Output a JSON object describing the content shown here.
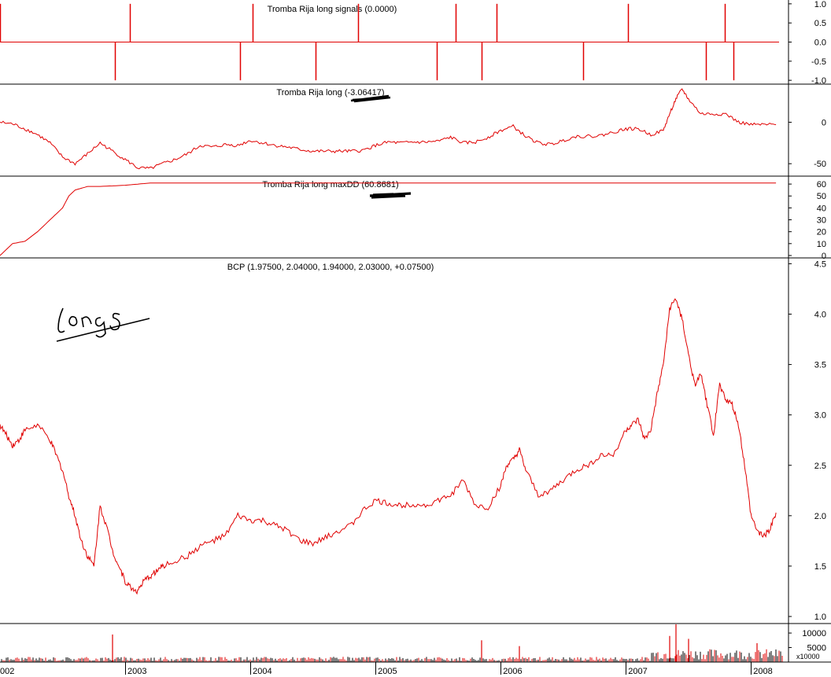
{
  "chart_data": [
    {
      "type": "line",
      "title": "Tromba Rija long signals (0.0000)",
      "ylim": [
        -1.1,
        1.1
      ],
      "yticks": [
        "1.0",
        "0.5",
        "0.0",
        "-0.5",
        "-1.0"
      ],
      "series": [
        {
          "color": "#e00000",
          "signals": [
            {
              "t": 2002.0,
              "v": 1
            },
            {
              "t": 2002.92,
              "v": -1
            },
            {
              "t": 2003.04,
              "v": 1
            },
            {
              "t": 2003.92,
              "v": -1
            },
            {
              "t": 2004.02,
              "v": 1
            },
            {
              "t": 2004.52,
              "v": -1
            },
            {
              "t": 2004.86,
              "v": 1
            },
            {
              "t": 2005.49,
              "v": -1
            },
            {
              "t": 2005.64,
              "v": 1
            },
            {
              "t": 2005.85,
              "v": -1
            },
            {
              "t": 2005.97,
              "v": 1
            },
            {
              "t": 2006.66,
              "v": -1
            },
            {
              "t": 2007.02,
              "v": 1
            },
            {
              "t": 2007.64,
              "v": -1
            },
            {
              "t": 2007.79,
              "v": 1
            },
            {
              "t": 2007.86,
              "v": -1
            }
          ]
        }
      ]
    },
    {
      "type": "line",
      "title": "Tromba Rija long (-3.06417)",
      "ylim": [
        -65,
        45
      ],
      "yticks": [
        "0",
        "-50"
      ],
      "series": [
        {
          "color": "#e00000",
          "x": [
            2002.0,
            2002.1,
            2002.2,
            2002.3,
            2002.4,
            2002.5,
            2002.6,
            2002.7,
            2002.8,
            2002.9,
            2003.0,
            2003.1,
            2003.2,
            2003.3,
            2003.4,
            2003.5,
            2003.6,
            2003.7,
            2003.8,
            2003.9,
            2004.0,
            2004.1,
            2004.2,
            2004.3,
            2004.4,
            2004.5,
            2004.6,
            2004.7,
            2004.8,
            2004.9,
            2005.0,
            2005.1,
            2005.2,
            2005.3,
            2005.4,
            2005.5,
            2005.6,
            2005.7,
            2005.8,
            2005.9,
            2006.0,
            2006.1,
            2006.2,
            2006.3,
            2006.4,
            2006.5,
            2006.6,
            2006.7,
            2006.8,
            2006.9,
            2007.0,
            2007.1,
            2007.2,
            2007.3,
            2007.35,
            2007.4,
            2007.45,
            2007.5,
            2007.6,
            2007.7,
            2007.8,
            2007.9,
            2008.0,
            2008.1,
            2008.2
          ],
          "values": [
            0,
            -2,
            -8,
            -15,
            -25,
            -42,
            -50,
            -38,
            -25,
            -35,
            -45,
            -55,
            -56,
            -50,
            -45,
            -38,
            -28,
            -30,
            -27,
            -28,
            -22,
            -25,
            -28,
            -30,
            -33,
            -35,
            -35,
            -35,
            -35,
            -34,
            -28,
            -24,
            -25,
            -24,
            -24,
            -23,
            -18,
            -25,
            -24,
            -18,
            -10,
            -5,
            -17,
            -25,
            -27,
            -22,
            -17,
            -17,
            -16,
            -12,
            -8,
            -8,
            -15,
            -10,
            10,
            28,
            40,
            28,
            10,
            10,
            10,
            0,
            -3,
            -3,
            -3
          ]
        }
      ]
    },
    {
      "type": "line",
      "title": "Tromba Rija long maxDD (60.8681)",
      "ylim": [
        -2,
        66
      ],
      "yticks": [
        "60",
        "50",
        "40",
        "30",
        "20",
        "10",
        "0"
      ],
      "series": [
        {
          "color": "#e00000",
          "x": [
            2002.0,
            2002.05,
            2002.1,
            2002.2,
            2002.3,
            2002.4,
            2002.5,
            2002.55,
            2002.6,
            2002.7,
            2002.8,
            2003.0,
            2003.2,
            2003.5,
            2005.0,
            2008.2
          ],
          "values": [
            0,
            5,
            10,
            12,
            20,
            30,
            40,
            50,
            55,
            58,
            58,
            59,
            60.8681,
            60.8681,
            60.8681,
            60.8681
          ]
        }
      ]
    },
    {
      "type": "line",
      "title": "BCP (1.97500, 2.04000, 1.94000, 2.03000, +0.07500)",
      "ylim": [
        0.93,
        4.55
      ],
      "yticks": [
        "4.5",
        "4.0",
        "3.5",
        "3.0",
        "2.5",
        "2.0",
        "1.5",
        "1.0"
      ],
      "series": [
        {
          "color": "#e00000",
          "x": [
            2002.0,
            2002.05,
            2002.1,
            2002.15,
            2002.2,
            2002.3,
            2002.4,
            2002.45,
            2002.5,
            2002.55,
            2002.6,
            2002.65,
            2002.7,
            2002.75,
            2002.8,
            2002.85,
            2002.9,
            2002.95,
            2003.0,
            2003.05,
            2003.1,
            2003.15,
            2003.2,
            2003.25,
            2003.3,
            2003.4,
            2003.5,
            2003.6,
            2003.7,
            2003.8,
            2003.9,
            2004.0,
            2004.1,
            2004.2,
            2004.3,
            2004.4,
            2004.5,
            2004.6,
            2004.7,
            2004.8,
            2004.9,
            2005.0,
            2005.1,
            2005.2,
            2005.3,
            2005.4,
            2005.5,
            2005.6,
            2005.7,
            2005.8,
            2005.9,
            2006.0,
            2006.05,
            2006.1,
            2006.15,
            2006.2,
            2006.3,
            2006.4,
            2006.5,
            2006.6,
            2006.7,
            2006.8,
            2006.9,
            2007.0,
            2007.05,
            2007.1,
            2007.15,
            2007.2,
            2007.25,
            2007.3,
            2007.35,
            2007.4,
            2007.45,
            2007.5,
            2007.55,
            2007.6,
            2007.65,
            2007.7,
            2007.75,
            2007.8,
            2007.85,
            2007.9,
            2007.95,
            2008.0,
            2008.05,
            2008.1,
            2008.15,
            2008.2
          ],
          "values": [
            2.9,
            2.8,
            2.7,
            2.75,
            2.85,
            2.9,
            2.75,
            2.6,
            2.45,
            2.2,
            2.0,
            1.75,
            1.6,
            1.5,
            2.1,
            1.9,
            1.65,
            1.5,
            1.35,
            1.28,
            1.25,
            1.35,
            1.4,
            1.45,
            1.5,
            1.55,
            1.6,
            1.7,
            1.75,
            1.8,
            2.0,
            1.95,
            1.95,
            1.9,
            1.85,
            1.75,
            1.72,
            1.78,
            1.85,
            1.9,
            2.05,
            2.15,
            2.12,
            2.1,
            2.12,
            2.1,
            2.15,
            2.2,
            2.35,
            2.1,
            2.08,
            2.3,
            2.5,
            2.55,
            2.65,
            2.45,
            2.2,
            2.25,
            2.35,
            2.45,
            2.5,
            2.6,
            2.6,
            2.85,
            2.9,
            2.95,
            2.75,
            2.85,
            3.2,
            3.5,
            4.05,
            4.15,
            3.95,
            3.6,
            3.3,
            3.4,
            3.1,
            2.8,
            3.3,
            3.15,
            3.1,
            2.9,
            2.5,
            2.0,
            1.85,
            1.8,
            1.85,
            2.03
          ]
        }
      ]
    },
    {
      "type": "bar",
      "title": "",
      "ylim": [
        0,
        13000
      ],
      "yticks": [
        "10000",
        "5000"
      ],
      "unit_label": "x10000",
      "series": [
        {
          "color": "#e00000",
          "spikes": [
            {
              "t": 2002.9,
              "v": 9500
            },
            {
              "t": 2005.85,
              "v": 7500
            },
            {
              "t": 2006.15,
              "v": 5500
            },
            {
              "t": 2007.35,
              "v": 9000
            },
            {
              "t": 2007.4,
              "v": 13000
            },
            {
              "t": 2007.5,
              "v": 8000
            },
            {
              "t": 2008.05,
              "v": 6500
            }
          ],
          "baseline_level": 1200,
          "late_level": 3000
        }
      ]
    }
  ],
  "x_axis": {
    "labels": [
      "002",
      "2003",
      "2004",
      "2005",
      "2006",
      "2007",
      "2008"
    ],
    "tick_years": [
      2003,
      2004,
      2005,
      2006,
      2007,
      2008
    ]
  },
  "annotation": {
    "handwriting": "Long"
  },
  "colors": {
    "series": "#e00000",
    "axis": "#000000",
    "background": "#ffffff"
  }
}
